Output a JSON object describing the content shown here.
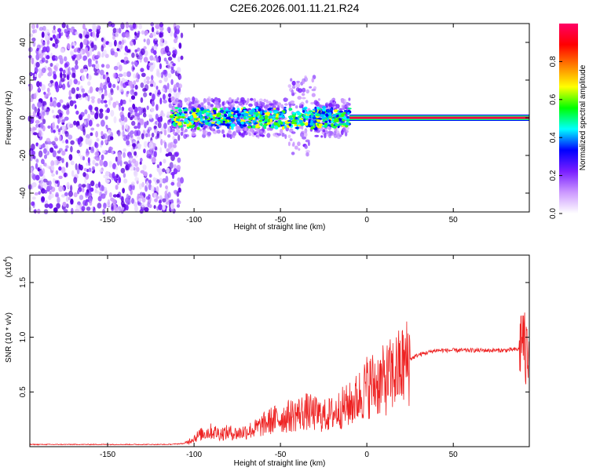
{
  "title": "C2E6.2026.001.11.21.R24",
  "chart_data": [
    {
      "type": "heatmap",
      "xlabel": "Height of straight line (km)",
      "ylabel": "Frequency (Hz)",
      "xlim": [
        -195,
        94
      ],
      "ylim": [
        -50,
        50
      ],
      "x_ticks": [
        -150,
        -100,
        -50,
        0,
        50
      ],
      "y_ticks": [
        -40,
        -20,
        0,
        20,
        40
      ],
      "colorbar": {
        "label": "Normalized spectral amplitude",
        "range": [
          0,
          1
        ],
        "ticks": [
          "0.0",
          "0.2",
          "0.4",
          "0.6",
          "0.8"
        ],
        "colors": [
          "#ffffff",
          "#cc99ff",
          "#7a1fff",
          "#0000ff",
          "#00ffff",
          "#00ff00",
          "#ffff00",
          "#ff8000",
          "#ff0000",
          "#ff0066"
        ]
      },
      "regions": [
        {
          "x_range": [
            -195,
            -113
          ],
          "pattern": "broadband noise",
          "amplitude": 0.15
        },
        {
          "x_range": [
            -113,
            -10
          ],
          "pattern": "signal near 0 Hz with scatter",
          "amplitude": 0.45
        },
        {
          "x_range": [
            -10,
            94
          ],
          "pattern": "narrow line at 0 Hz",
          "amplitude": 0.98
        }
      ]
    },
    {
      "type": "line",
      "xlabel": "Height of straight line (km)",
      "ylabel": "SNR (10 * v/v)",
      "y_multiplier": "(x10",
      "y_multiplier_exp": "4",
      "y_multiplier_close": ")",
      "xlim": [
        -195,
        94
      ],
      "ylim": [
        0,
        1.75
      ],
      "x_ticks": [
        -150,
        -100,
        -50,
        0,
        50
      ],
      "y_ticks": [
        "0.5",
        "1.0",
        "1.5"
      ],
      "line_color": "#ee2222",
      "series": [
        {
          "x": [
            -195,
            -150,
            -115,
            -105,
            -100,
            -95,
            -90,
            -85,
            -80,
            -75,
            -70,
            -65,
            -60,
            -55,
            -50,
            -45,
            -40,
            -35,
            -30,
            -25,
            -20,
            -15,
            -10,
            -5,
            0,
            5,
            10,
            15,
            20,
            25,
            30,
            35,
            40,
            50,
            60,
            70,
            80,
            88,
            90,
            92,
            94
          ],
          "y": [
            0.02,
            0.02,
            0.02,
            0.03,
            0.08,
            0.12,
            0.14,
            0.12,
            0.13,
            0.12,
            0.14,
            0.16,
            0.2,
            0.24,
            0.26,
            0.28,
            0.3,
            0.32,
            0.3,
            0.28,
            0.3,
            0.35,
            0.38,
            0.45,
            0.55,
            0.58,
            0.6,
            0.66,
            0.72,
            0.8,
            0.84,
            0.86,
            0.88,
            0.88,
            0.88,
            0.88,
            0.88,
            0.89,
            1.05,
            0.8,
            1.0
          ]
        }
      ]
    }
  ]
}
